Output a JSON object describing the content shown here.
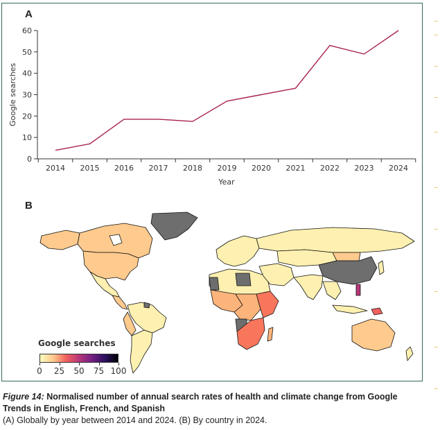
{
  "panel_a_label": "A",
  "panel_b_label": "B",
  "chart_data": [
    {
      "type": "line",
      "panel": "A",
      "title": "",
      "xlabel": "Year",
      "ylabel": "Google searches",
      "x": [
        2014,
        2015,
        2016,
        2017,
        2018,
        2019,
        2020,
        2021,
        2022,
        2023,
        2024
      ],
      "series": [
        {
          "name": "Google searches",
          "color": "#a8224d",
          "values": [
            4,
            7,
            18.5,
            18.5,
            17.5,
            27,
            30,
            33,
            53,
            49,
            60
          ]
        }
      ],
      "values_note": "Estimated from gridlines; no data labels printed. Approx. ±1 unit, especially for 2016-2018.",
      "ylim": [
        0,
        60
      ],
      "yticks": [
        0,
        10,
        20,
        30,
        40,
        50,
        60
      ],
      "ytick_labels": [
        "0",
        "10",
        "20",
        "30",
        "40",
        "50",
        "60"
      ],
      "xtick_labels": [
        "2014",
        "2015",
        "2016",
        "2017",
        "2018",
        "2019",
        "2020",
        "2021",
        "2022",
        "2023",
        "2024"
      ],
      "grid": false,
      "legend": "none"
    },
    {
      "type": "heatmap",
      "panel": "B",
      "description": "Choropleth world map of normalised Google searches by country in 2024",
      "legend_title": "Google searches",
      "colorbar_range": [
        0,
        100
      ],
      "colorbar_ticks": [
        "0",
        "25",
        "50",
        "75",
        "100"
      ],
      "colormap": [
        "#fcfdbf",
        "#feca8d",
        "#f1605d",
        "#b73779",
        "#721f81",
        "#2c115f",
        "#000004"
      ],
      "no_data_color": "#6e6e6e",
      "legend": "bottom-left"
    }
  ],
  "caption": {
    "figure_number": "Figure 14:",
    "title": "Normalised number of annual search rates of health and climate change from Google Trends in English, French, and Spanish",
    "subtitle": "(A) Globally by year between 2014 and 2024. (B) By country in 2024."
  }
}
